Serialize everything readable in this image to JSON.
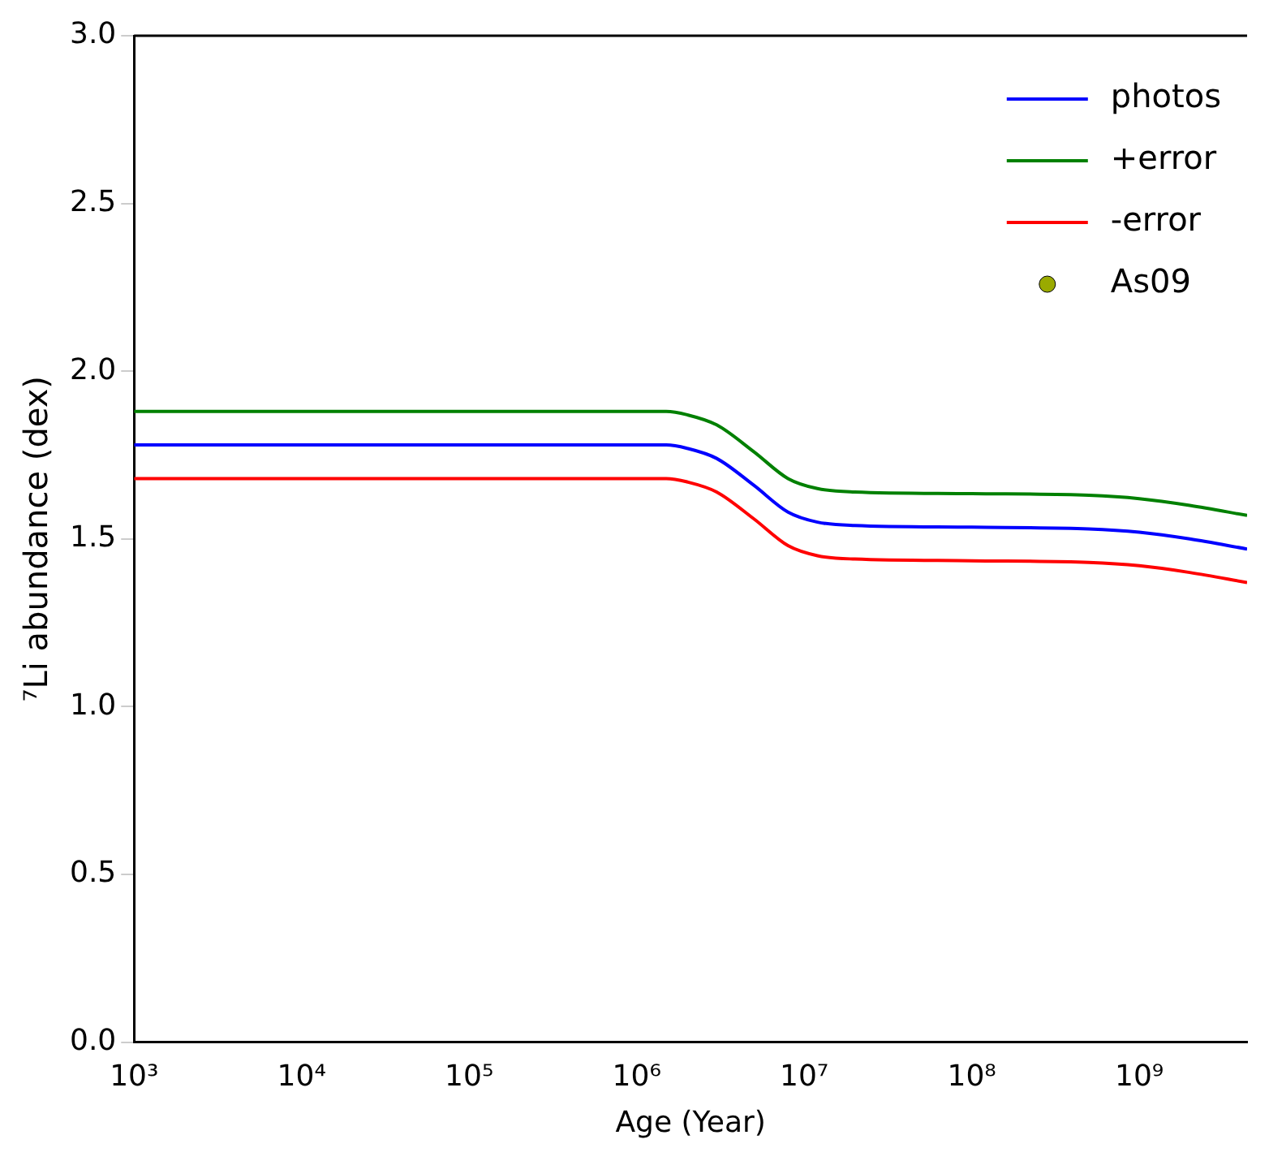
{
  "chart_data": {
    "type": "line",
    "xlabel": "Age (Year)",
    "ylabel": "⁷Li abundance (dex)",
    "log": "x",
    "legend": "top right",
    "grid": false,
    "xlim": [
      1000,
      4400000000
    ],
    "xticks": [
      {
        "value": 1000,
        "label": "10³"
      },
      {
        "value": 10000,
        "label": "10⁴"
      },
      {
        "value": 100000,
        "label": "10⁵"
      },
      {
        "value": 1000000,
        "label": "10⁶"
      },
      {
        "value": 10000000,
        "label": "10⁷"
      },
      {
        "value": 100000000,
        "label": "10⁸"
      },
      {
        "value": 1000000000,
        "label": "10⁹"
      }
    ],
    "ylim": [
      0,
      3
    ],
    "yticks": [
      {
        "value": 0,
        "label": "0.0"
      },
      {
        "value": 0.5,
        "label": "0.5"
      },
      {
        "value": 1,
        "label": "1.0"
      },
      {
        "value": 1.5,
        "label": "1.5"
      },
      {
        "value": 2,
        "label": "2.0"
      },
      {
        "value": 2.5,
        "label": "2.5"
      },
      {
        "value": 3,
        "label": "3.0"
      }
    ],
    "x": [
      1000,
      1000000,
      1500000,
      2000000,
      3000000,
      5000000,
      8000000,
      12000000,
      20000000,
      100000000,
      500000000,
      1000000000,
      2000000000,
      4400000000
    ],
    "series": [
      {
        "name": "photos",
        "color": "#0000ff",
        "values": [
          1.78,
          1.78,
          1.78,
          1.77,
          1.74,
          1.66,
          1.58,
          1.55,
          1.54,
          1.535,
          1.53,
          1.52,
          1.5,
          1.47
        ]
      },
      {
        "name": "+error",
        "color": "#008000",
        "values": [
          1.88,
          1.88,
          1.88,
          1.87,
          1.84,
          1.76,
          1.68,
          1.65,
          1.64,
          1.635,
          1.63,
          1.62,
          1.6,
          1.57
        ]
      },
      {
        "name": "-error",
        "color": "#ff0000",
        "values": [
          1.68,
          1.68,
          1.68,
          1.67,
          1.64,
          1.56,
          1.48,
          1.45,
          1.44,
          1.435,
          1.43,
          1.42,
          1.4,
          1.37
        ]
      },
      {
        "name": "As09",
        "type": "scatter",
        "color": "#9aaa00",
        "marker": "circle",
        "values": [
          null,
          null,
          null,
          null,
          null,
          null,
          null,
          null,
          null,
          null,
          null,
          null,
          null,
          null
        ]
      }
    ]
  }
}
